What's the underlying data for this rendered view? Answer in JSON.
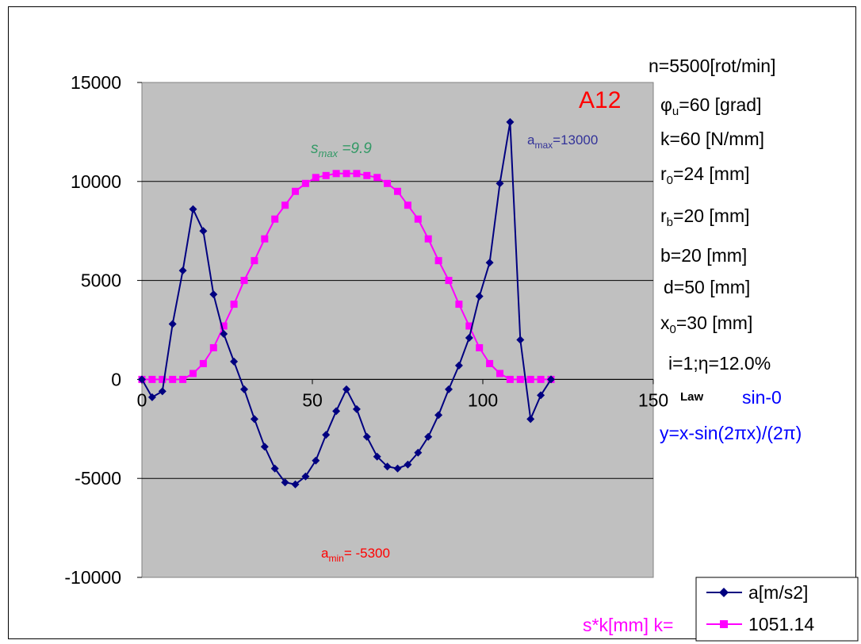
{
  "chart_data": {
    "type": "line",
    "title": "A12",
    "xlabel": "",
    "ylabel": "",
    "xlim": [
      0,
      150
    ],
    "ylim": [
      -10000,
      15000
    ],
    "x_ticks": [
      "0",
      "50",
      "100",
      "150"
    ],
    "y_ticks": [
      "15000",
      "10000",
      "5000",
      "0",
      "-5000",
      "-10000"
    ],
    "x_tick_values": [
      0,
      50,
      100,
      150
    ],
    "y_tick_values": [
      15000,
      10000,
      5000,
      0,
      -5000,
      -10000
    ],
    "grid": "horizontal",
    "plot_background": "#c0c0c0",
    "series": [
      {
        "name": "a[m/s2]",
        "color": "#000080",
        "marker": "diamond",
        "x": [
          0,
          3,
          6,
          9,
          12,
          15,
          18,
          21,
          24,
          27,
          30,
          33,
          36,
          39,
          42,
          45,
          48,
          51,
          54,
          57,
          60,
          63,
          66,
          69,
          72,
          75,
          78,
          81,
          84,
          87,
          90,
          93,
          96,
          99,
          102,
          105,
          108,
          111,
          114,
          117,
          120
        ],
        "values": [
          0,
          -900,
          -600,
          2800,
          5500,
          8600,
          7500,
          4300,
          2300,
          900,
          -500,
          -2000,
          -3400,
          -4500,
          -5200,
          -5300,
          -4900,
          -4100,
          -2800,
          -1600,
          -500,
          -1500,
          -2900,
          -3900,
          -4400,
          -4500,
          -4300,
          -3700,
          -2900,
          -1800,
          -500,
          700,
          2100,
          4200,
          5900,
          9900,
          13000,
          2000,
          -2000,
          -800,
          0
        ]
      },
      {
        "name": "1051.14",
        "label_left": "s*k[mm] k=",
        "color": "#ff00ff",
        "marker": "square",
        "x": [
          0,
          3,
          6,
          9,
          12,
          15,
          18,
          21,
          24,
          27,
          30,
          33,
          36,
          39,
          42,
          45,
          48,
          51,
          54,
          57,
          60,
          63,
          66,
          69,
          72,
          75,
          78,
          81,
          84,
          87,
          90,
          93,
          96,
          99,
          102,
          105,
          108,
          111,
          114,
          117,
          120
        ],
        "values": [
          0,
          0,
          0,
          0,
          0,
          300,
          800,
          1600,
          2700,
          3800,
          5000,
          6000,
          7100,
          8100,
          8800,
          9500,
          9900,
          10200,
          10300,
          10400,
          10400,
          10400,
          10300,
          10200,
          9900,
          9500,
          8800,
          8100,
          7100,
          6000,
          5000,
          3800,
          2700,
          1600,
          800,
          300,
          0,
          0,
          0,
          0,
          0
        ]
      }
    ],
    "annotations": {
      "title_label": "A12",
      "s_max": "s max =9.9",
      "a_max": "amax=13000",
      "a_min": "amin= -5300",
      "law_label": "Law",
      "law_value": "sin-0",
      "formula": "y=x-sin(2πx)/(2π)"
    },
    "parameters": [
      "n=5500[rot/min]",
      "φu=60 [grad]",
      "k=60 [N/mm]",
      "r0=24 [mm]",
      "rb=20 [mm]",
      "b=20 [mm]",
      "d=50 [mm]",
      "x0=30 [mm]",
      "i=1;η=12.0%"
    ]
  }
}
